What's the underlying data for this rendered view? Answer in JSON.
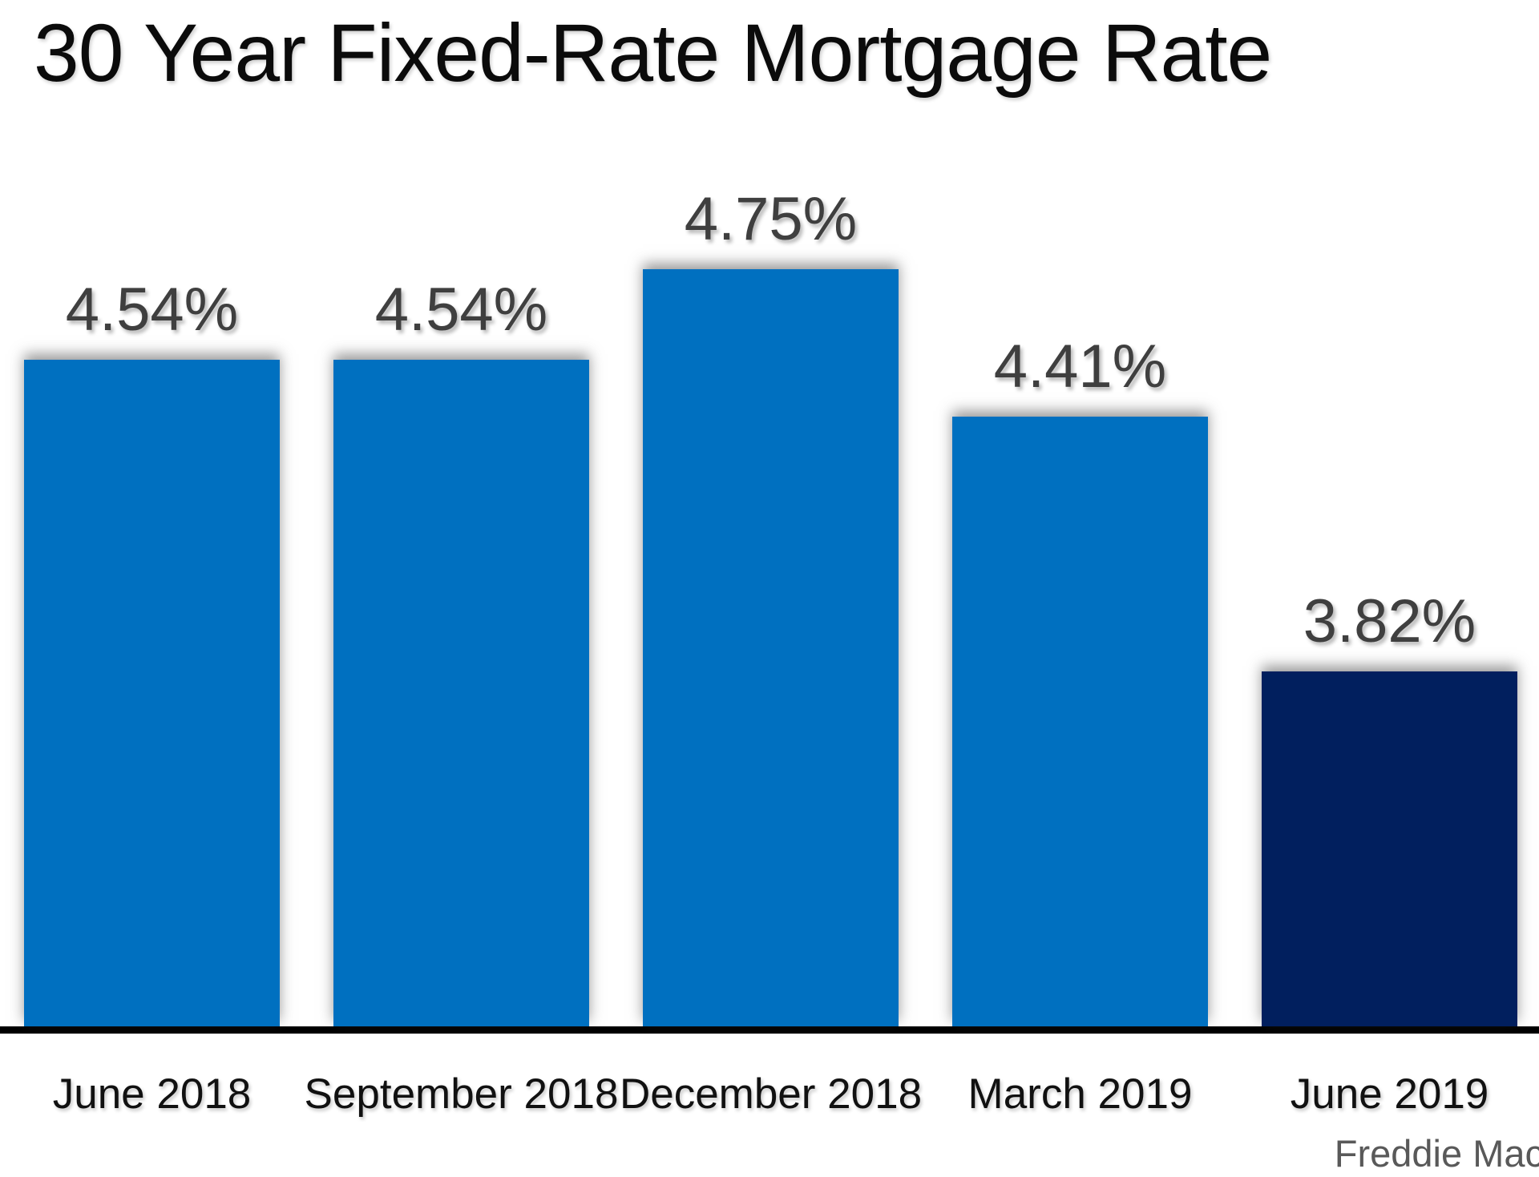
{
  "chart_data": {
    "type": "bar",
    "title": "30 Year Fixed-Rate Mortgage Rate",
    "categories": [
      "June 2018",
      "September 2018",
      "December 2018",
      "March 2019",
      "June 2019"
    ],
    "values": [
      4.54,
      4.54,
      4.75,
      4.41,
      3.82
    ],
    "value_labels": [
      "4.54%",
      "4.54%",
      "4.75%",
      "4.41%",
      "3.82%"
    ],
    "bar_colors": [
      "#0070C0",
      "#0070C0",
      "#0070C0",
      "#0070C0",
      "#011F5E"
    ],
    "ylim": [
      3.0,
      5.0
    ],
    "xlabel": "",
    "ylabel": "",
    "grid": false,
    "legend": false,
    "source": "Freddie Mac"
  },
  "colors": {
    "background": "#FFFFFF",
    "title_text": "#0B0B0B",
    "value_label_text": "#3F3F3F",
    "axis_line": "#000000",
    "tick_label_text": "#111111",
    "source_text": "#595959",
    "bar_blue": "#0070C0",
    "bar_navy": "#011F5E"
  }
}
